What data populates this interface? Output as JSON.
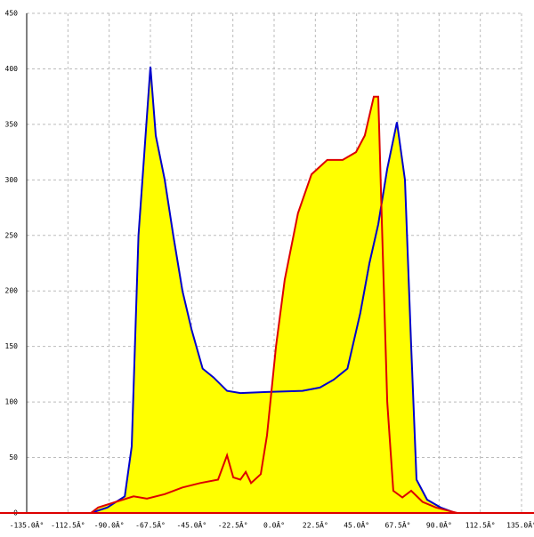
{
  "chart_data": {
    "type": "area-line",
    "series": [
      {
        "color": "#0000cc",
        "fill": "#ffff00",
        "x": [
          -100,
          -91,
          -81.5,
          -77.7,
          -74,
          -71,
          -67.5,
          -64.6,
          -59.7,
          -55,
          -50,
          -45,
          -39,
          -33,
          -25.7,
          -18.4,
          -4,
          15.5,
          25,
          32.5,
          40,
          47,
          52,
          56.8,
          61.7,
          67,
          71.4,
          74.8,
          77.7,
          83.5,
          90.8,
          99
        ],
        "values": [
          0,
          5,
          15,
          60,
          250,
          320,
          402,
          340,
          300,
          250,
          200,
          165,
          130,
          122,
          110,
          108,
          109,
          110,
          113,
          120,
          130,
          180,
          225,
          260,
          310,
          352,
          300,
          150,
          30,
          12,
          5,
          0
        ]
      },
      {
        "color": "#dd0000",
        "fill": "#ffff00",
        "x": [
          -100,
          -96,
          -86.4,
          -76.7,
          -69.4,
          -59.7,
          -50,
          -40.3,
          -30.6,
          -25.7,
          -22.3,
          -18.4,
          -15.5,
          -12.6,
          -7.3,
          -3.9,
          1,
          5.8,
          13,
          20.4,
          29,
          37.4,
          44.7,
          49.5,
          54.4,
          56.8,
          59,
          61.7,
          65,
          70,
          74.8,
          81,
          88.3,
          100
        ],
        "values": [
          0,
          5,
          10,
          15,
          13,
          17,
          23,
          27,
          30,
          52,
          32,
          30,
          37,
          27,
          35,
          70,
          150,
          210,
          270,
          305,
          318,
          318,
          325,
          340,
          375,
          375,
          250,
          100,
          20,
          14,
          20,
          10,
          5,
          0
        ]
      }
    ],
    "xlim": [
      -135,
      135
    ],
    "xticks": [
      {
        "value": -135,
        "label": "-135.0Â°"
      },
      {
        "value": -112.5,
        "label": "-112.5Â°"
      },
      {
        "value": -90,
        "label": "-90.0Â°"
      },
      {
        "value": -67.5,
        "label": "-67.5Â°"
      },
      {
        "value": -45,
        "label": "-45.0Â°"
      },
      {
        "value": -22.5,
        "label": "-22.5Â°"
      },
      {
        "value": 0,
        "label": "0.0Â°"
      },
      {
        "value": 22.5,
        "label": "22.5Â°"
      },
      {
        "value": 45,
        "label": "45.0Â°"
      },
      {
        "value": 67.5,
        "label": "67.5Â°"
      },
      {
        "value": 90,
        "label": "90.0Â°"
      },
      {
        "value": 112.5,
        "label": "112.5Â°"
      },
      {
        "value": 135,
        "label": "135.0Â°"
      }
    ],
    "ylim": [
      0,
      450
    ],
    "yticks": [
      0,
      50,
      100,
      150,
      200,
      250,
      300,
      350,
      400,
      450
    ],
    "grid": true
  }
}
